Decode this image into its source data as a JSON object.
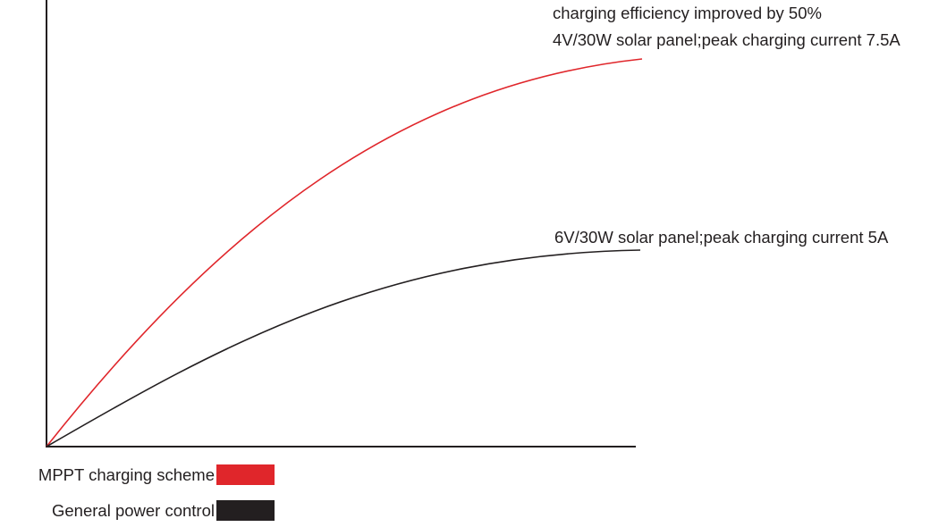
{
  "annotations": {
    "efficiency": "charging efficiency improved by 50%",
    "mppt_curve": "4V/30W solar panel;peak charging current 7.5A",
    "general_curve": "6V/30W solar panel;peak charging current 5A"
  },
  "legend": {
    "items": [
      {
        "label": "MPPT charging scheme"
      },
      {
        "label": "General power control"
      }
    ]
  }
}
